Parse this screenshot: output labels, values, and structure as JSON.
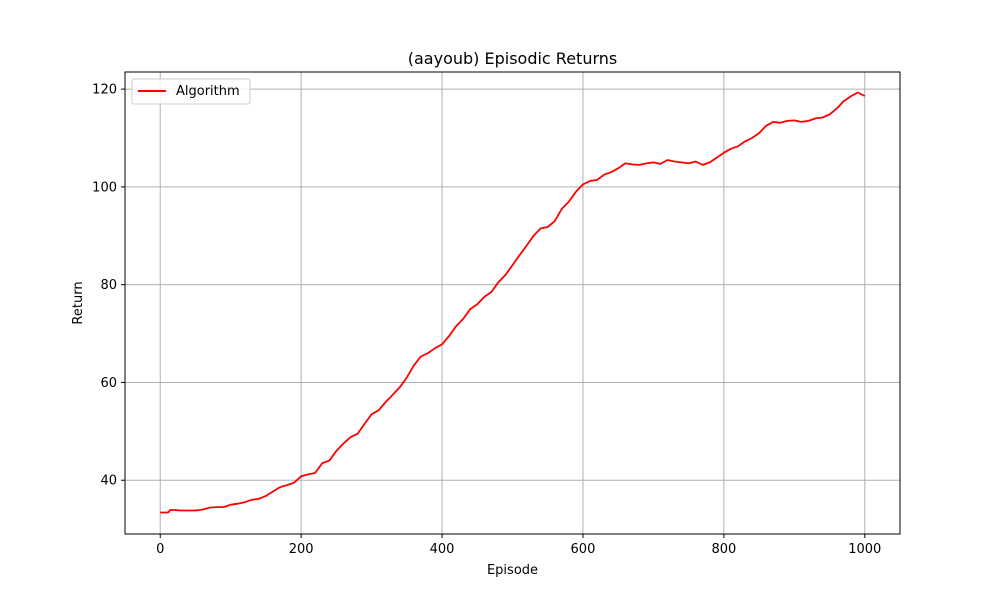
{
  "chart_data": {
    "type": "line",
    "title": "(aayoub) Episodic Returns",
    "xlabel": "Episode",
    "ylabel": "Return",
    "xlim": [
      -50,
      1050
    ],
    "ylim": [
      29.0,
      123.5
    ],
    "xticks": [
      0,
      200,
      400,
      600,
      800,
      1000
    ],
    "yticks": [
      40,
      60,
      80,
      100,
      120
    ],
    "grid": true,
    "legend_position": "top-left",
    "series": [
      {
        "name": "Algorithm",
        "color": "#ff0000",
        "x": [
          0,
          10,
          12,
          14,
          20,
          30,
          40,
          50,
          60,
          70,
          80,
          90,
          100,
          110,
          120,
          130,
          140,
          150,
          160,
          170,
          180,
          190,
          200,
          210,
          220,
          230,
          240,
          250,
          260,
          270,
          280,
          290,
          300,
          310,
          320,
          330,
          340,
          350,
          360,
          370,
          380,
          390,
          400,
          410,
          420,
          430,
          440,
          450,
          460,
          470,
          480,
          490,
          500,
          510,
          520,
          530,
          540,
          550,
          560,
          570,
          580,
          590,
          600,
          610,
          620,
          630,
          640,
          650,
          660,
          670,
          680,
          690,
          700,
          710,
          720,
          730,
          740,
          750,
          760,
          770,
          780,
          790,
          800,
          810,
          820,
          830,
          840,
          850,
          860,
          870,
          880,
          890,
          900,
          910,
          920,
          930,
          940,
          950,
          960,
          970,
          980,
          990,
          1000
        ],
        "values": [
          33.4,
          33.4,
          33.5,
          33.9,
          33.9,
          33.8,
          33.8,
          33.8,
          34.0,
          34.4,
          34.5,
          34.5,
          35.0,
          35.2,
          35.5,
          36.0,
          36.2,
          36.8,
          37.7,
          38.6,
          39.0,
          39.5,
          40.8,
          41.2,
          41.5,
          43.5,
          44.0,
          46.0,
          47.5,
          48.8,
          49.5,
          51.5,
          53.5,
          54.3,
          56.0,
          57.5,
          59.0,
          61.0,
          63.5,
          65.3,
          66.0,
          67.0,
          67.8,
          69.5,
          71.5,
          73.0,
          75.0,
          76.0,
          77.5,
          78.5,
          80.5,
          82.0,
          84.0,
          86.0,
          88.0,
          90.0,
          91.5,
          91.8,
          93.0,
          95.5,
          97.0,
          99.0,
          100.5,
          101.2,
          101.4,
          102.5,
          103.0,
          103.8,
          104.8,
          104.6,
          104.5,
          104.8,
          105.0,
          104.7,
          105.5,
          105.2,
          105.0,
          104.8,
          105.2,
          104.5,
          105.0,
          106.0,
          107.0,
          107.8,
          108.3,
          109.3,
          110.0,
          111.0,
          112.5,
          113.3,
          113.1,
          113.5,
          113.6,
          113.3,
          113.5,
          114.0,
          114.2,
          114.8,
          116.0,
          117.5,
          118.5,
          119.3,
          118.6
        ]
      }
    ]
  }
}
